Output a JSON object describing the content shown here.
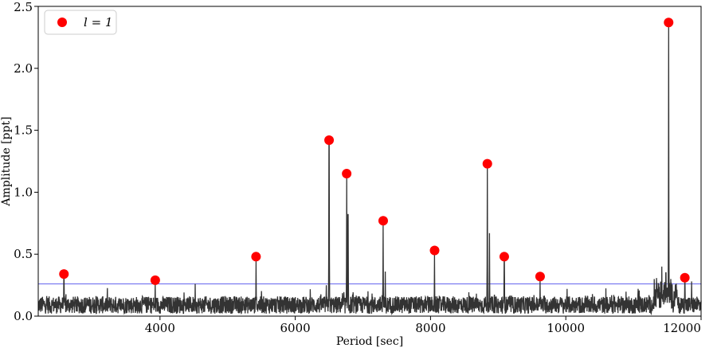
{
  "chart_data": {
    "type": "line",
    "xlabel": "Period [sec]",
    "ylabel": "Amplitude [ppt]",
    "xlim": [
      2200,
      12000
    ],
    "ylim": [
      0,
      2.5
    ],
    "xticks": [
      4000,
      6000,
      8000,
      10000,
      12000
    ],
    "yticks": [
      0.0,
      0.5,
      1.0,
      1.5,
      2.0,
      2.5
    ],
    "xtick_labels": [
      "4000",
      "6000",
      "8000",
      "10000",
      "12000"
    ],
    "ytick_labels": [
      "0.0",
      "0.5",
      "1.0",
      "1.5",
      "2.0",
      "2.5"
    ],
    "grid": false,
    "legend": {
      "position": "top-left",
      "marker_color": "#ff0000"
    },
    "threshold": {
      "value": 0.26,
      "color": "#6666ee"
    },
    "spectrum_color": "#333333",
    "series": [
      {
        "name": "l = 1",
        "type": "scatter",
        "color": "#ff0000",
        "x": [
          2580,
          3930,
          5420,
          6500,
          6760,
          7300,
          8060,
          8840,
          9090,
          9620,
          11520,
          11760
        ],
        "y": [
          0.34,
          0.29,
          0.48,
          1.42,
          1.15,
          0.77,
          0.53,
          1.23,
          0.48,
          0.32,
          2.37,
          0.31
        ]
      }
    ],
    "spectrum_extra_peaks": {
      "x": [
        4520,
        6460,
        6780,
        7330,
        8870,
        11420,
        11480,
        11860
      ],
      "y": [
        0.26,
        0.25,
        0.82,
        0.36,
        0.67,
        0.4,
        0.35,
        0.28
      ]
    }
  }
}
